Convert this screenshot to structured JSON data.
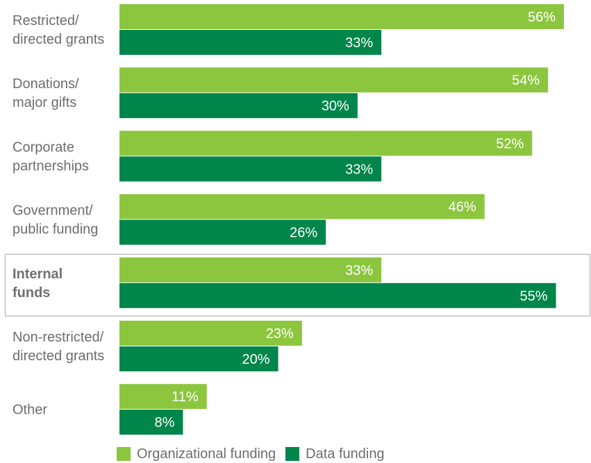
{
  "chart_data": {
    "type": "bar",
    "orientation": "horizontal",
    "categories": [
      [
        "Restricted/",
        "directed grants"
      ],
      [
        "Donations/",
        "major gifts"
      ],
      [
        "Corporate",
        "partnerships"
      ],
      [
        "Government/",
        "public funding"
      ],
      [
        "Internal",
        "funds"
      ],
      [
        "Non-restricted/",
        "directed grants"
      ],
      [
        "Other"
      ]
    ],
    "highlight_category_index": 4,
    "series": [
      {
        "name": "Organizational funding",
        "color": "#8cc63f",
        "values": [
          56,
          54,
          52,
          46,
          33,
          23,
          11
        ]
      },
      {
        "name": "Data funding",
        "color": "#00854a",
        "values": [
          33,
          30,
          33,
          26,
          55,
          20,
          8
        ]
      }
    ],
    "value_suffix": "%",
    "xlim": [
      0,
      56
    ],
    "grid": false,
    "legend_position": "bottom"
  }
}
